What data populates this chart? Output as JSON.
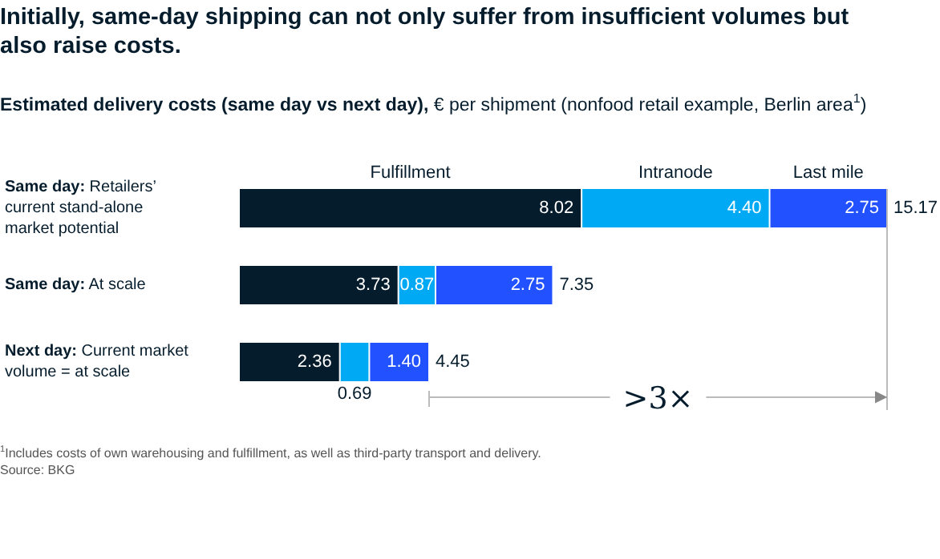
{
  "chart_data": {
    "type": "bar",
    "orientation": "horizontal",
    "stacked": true,
    "legend": false,
    "grid": false,
    "title": "Initially, same-day shipping can not only suffer from insufficient volumes but also raise costs.",
    "subtitle": "Estimated delivery costs (same day vs next day), € per shipment (nonfood retail example, Berlin area$^{1}$)",
    "categories": [
      "Same day: Retailers’ current stand-alone market potential",
      "Same day: At scale",
      "Next day: Current market volume = at scale"
    ],
    "series": [
      {
        "name": "Fulfillment",
        "color": "#051c2c",
        "values": [
          8.02,
          3.73,
          2.36
        ],
        "value_labels": [
          "8.02",
          "3.73",
          "2.36"
        ]
      },
      {
        "name": "Intranode",
        "color": "#00a9f4",
        "values": [
          4.4,
          0.87,
          0.69
        ],
        "value_labels": [
          "4.40",
          "0.87",
          "0.69"
        ]
      },
      {
        "name": "Last mile",
        "color": "#2251ff",
        "values": [
          2.75,
          2.75,
          1.4
        ],
        "value_labels": [
          "2.75",
          "2.75",
          "1.40"
        ]
      }
    ],
    "totals": [
      "15.17",
      "7.35",
      "4.45"
    ],
    "annotations": [
      ">3×",
      "$^{1}$Includes costs of own warehousing and fulfillment, as well as third-party transport and delivery.",
      "Source: BKG"
    ]
  }
}
